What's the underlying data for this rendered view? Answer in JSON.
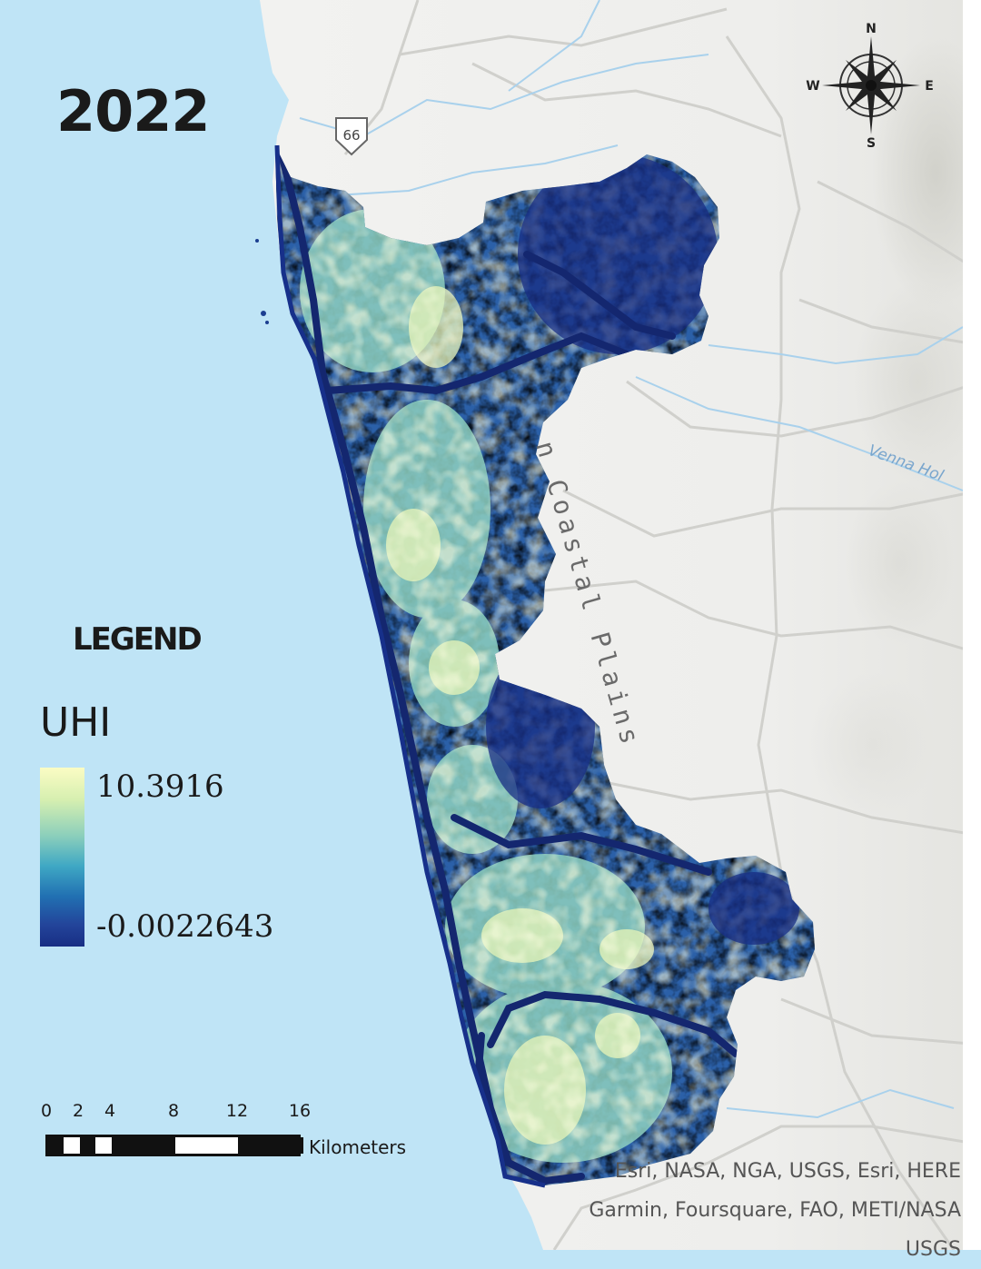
{
  "map": {
    "year": "2022",
    "region_label": "n Coastal Plains",
    "road_shield": "66",
    "river_label": "Venna Hol",
    "colors": {
      "sea": "#bfe4f6",
      "land": "#f3f3f1",
      "road": "#cfcfcf",
      "river": "#a7cfe9",
      "uhi_high": "#fbfcc4",
      "uhi_low": "#182e84"
    }
  },
  "compass": {
    "north": "N",
    "south": "S",
    "east": "E",
    "west": "W",
    "icon": "compass-rose-icon"
  },
  "legend": {
    "title": "LEGEND",
    "variable": "UHI",
    "max_label": "10.3916",
    "min_label": "-0.0022643"
  },
  "scale_bar": {
    "ticks": [
      "0",
      "2",
      "4",
      "8",
      "12",
      "16"
    ],
    "unit": "Kilometers"
  },
  "attribution": {
    "line1": "Esri, NASA, NGA, USGS, Esri, HERE",
    "line2": "Garmin, Foursquare, FAO, METI/NASA",
    "line3": "USGS"
  }
}
